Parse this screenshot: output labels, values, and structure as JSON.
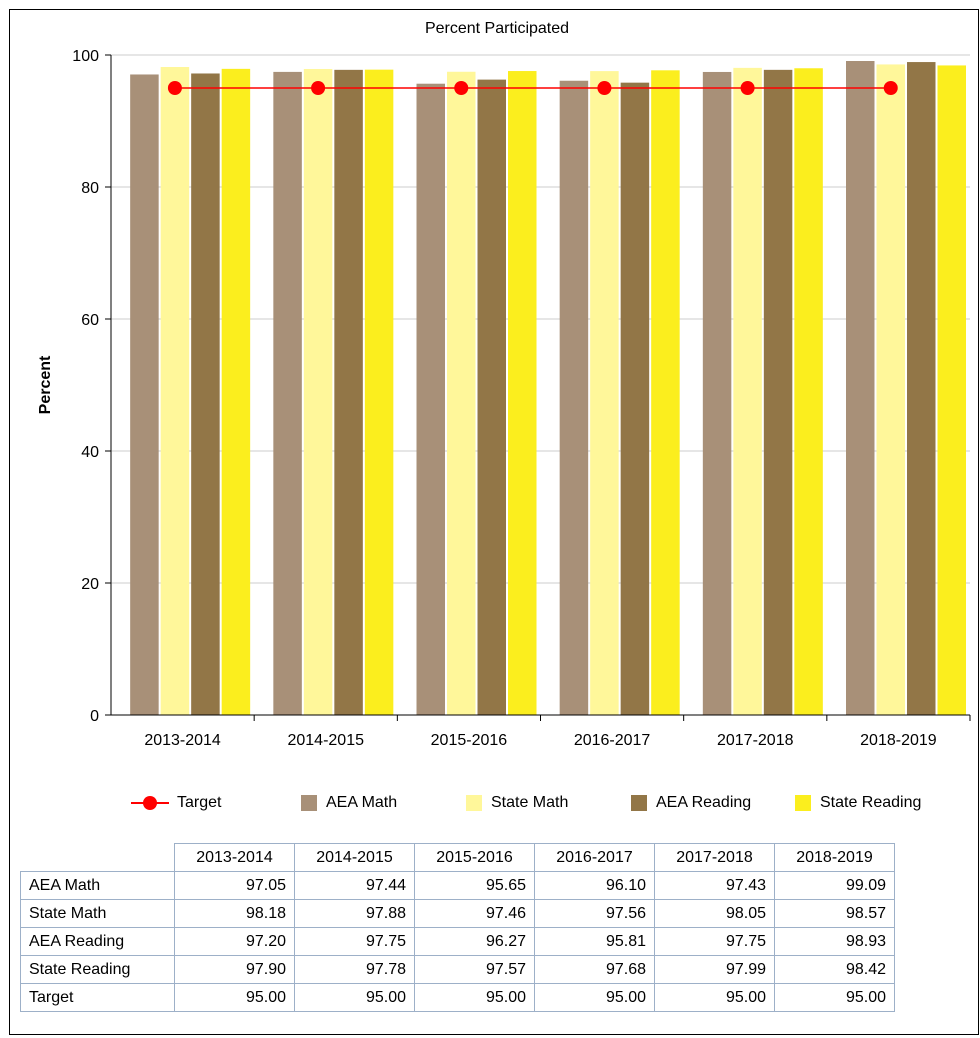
{
  "chart_data": {
    "type": "bar",
    "title": "Percent Participated",
    "xlabel": "",
    "ylabel": "Percent",
    "ylim": [
      0,
      100
    ],
    "yticks": [
      0,
      20,
      40,
      60,
      80,
      100
    ],
    "grid": true,
    "legend_position": "bottom",
    "categories": [
      "2013-2014",
      "2014-2015",
      "2015-2016",
      "2016-2017",
      "2017-2018",
      "2018-2019"
    ],
    "series": [
      {
        "name": "AEA Math",
        "type": "bar",
        "color": "#a89078",
        "values": [
          97.05,
          97.44,
          95.65,
          96.1,
          97.43,
          99.09
        ]
      },
      {
        "name": "State Math",
        "type": "bar",
        "color": "#fff79a",
        "values": [
          98.18,
          97.88,
          97.46,
          97.56,
          98.05,
          98.57
        ]
      },
      {
        "name": "AEA Reading",
        "type": "bar",
        "color": "#927647",
        "values": [
          97.2,
          97.75,
          96.27,
          95.81,
          97.75,
          98.93
        ]
      },
      {
        "name": "State Reading",
        "type": "bar",
        "color": "#fbee1e",
        "values": [
          97.9,
          97.78,
          97.57,
          97.68,
          97.99,
          98.42
        ]
      },
      {
        "name": "Target",
        "type": "line",
        "color": "#ff0000",
        "values": [
          95.0,
          95.0,
          95.0,
          95.0,
          95.0,
          95.0
        ]
      }
    ],
    "legend_order": [
      "Target",
      "AEA Math",
      "State Math",
      "AEA Reading",
      "State Reading"
    ]
  },
  "table": {
    "columns": [
      "2013-2014",
      "2014-2015",
      "2015-2016",
      "2016-2017",
      "2017-2018",
      "2018-2019"
    ],
    "rows": [
      {
        "label": "AEA Math",
        "values": [
          "97.05",
          "97.44",
          "95.65",
          "96.10",
          "97.43",
          "99.09"
        ]
      },
      {
        "label": "State Math",
        "values": [
          "98.18",
          "97.88",
          "97.46",
          "97.56",
          "98.05",
          "98.57"
        ]
      },
      {
        "label": "AEA Reading",
        "values": [
          "97.20",
          "97.75",
          "96.27",
          "95.81",
          "97.75",
          "98.93"
        ]
      },
      {
        "label": "State Reading",
        "values": [
          "97.90",
          "97.78",
          "97.57",
          "97.68",
          "97.99",
          "98.42"
        ]
      },
      {
        "label": "Target",
        "values": [
          "95.00",
          "95.00",
          "95.00",
          "95.00",
          "95.00",
          "95.00"
        ]
      }
    ]
  }
}
